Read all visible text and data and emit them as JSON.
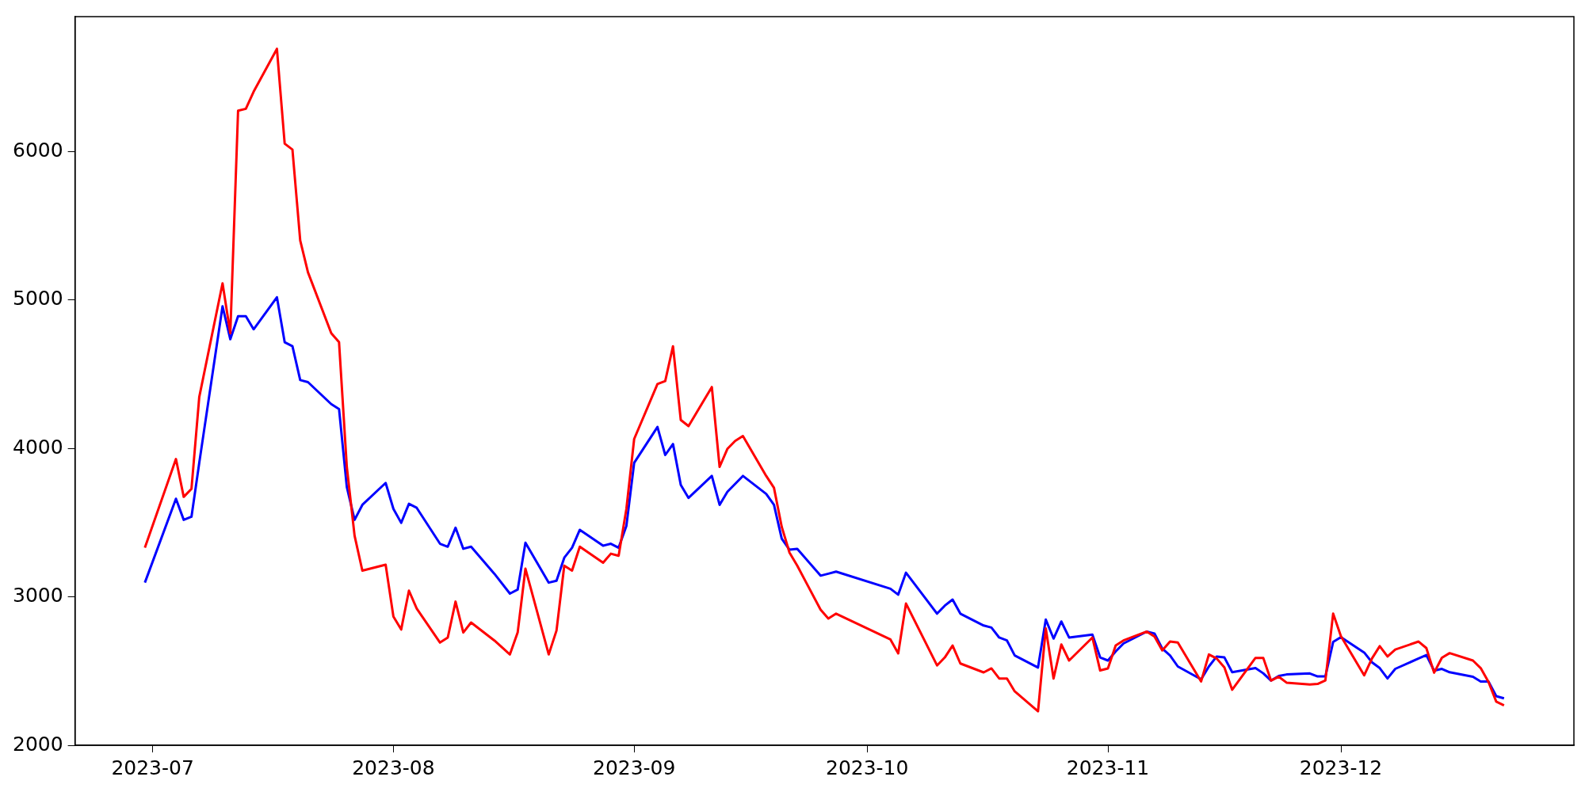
{
  "chart_data": {
    "type": "line",
    "x": [
      "2023-06-30",
      "2023-07-04",
      "2023-07-05",
      "2023-07-06",
      "2023-07-07",
      "2023-07-10",
      "2023-07-11",
      "2023-07-12",
      "2023-07-13",
      "2023-07-14",
      "2023-07-17",
      "2023-07-18",
      "2023-07-19",
      "2023-07-20",
      "2023-07-21",
      "2023-07-24",
      "2023-07-25",
      "2023-07-26",
      "2023-07-27",
      "2023-07-28",
      "2023-07-31",
      "2023-08-01",
      "2023-08-02",
      "2023-08-03",
      "2023-08-04",
      "2023-08-07",
      "2023-08-08",
      "2023-08-09",
      "2023-08-10",
      "2023-08-11",
      "2023-08-14",
      "2023-08-16",
      "2023-08-17",
      "2023-08-18",
      "2023-08-21",
      "2023-08-22",
      "2023-08-23",
      "2023-08-24",
      "2023-08-25",
      "2023-08-28",
      "2023-08-29",
      "2023-08-30",
      "2023-08-31",
      "2023-09-01",
      "2023-09-04",
      "2023-09-05",
      "2023-09-06",
      "2023-09-07",
      "2023-09-08",
      "2023-09-11",
      "2023-09-12",
      "2023-09-13",
      "2023-09-14",
      "2023-09-15",
      "2023-09-18",
      "2023-09-19",
      "2023-09-20",
      "2023-09-21",
      "2023-09-22",
      "2023-09-25",
      "2023-09-26",
      "2023-09-27",
      "2023-10-04",
      "2023-10-05",
      "2023-10-06",
      "2023-10-10",
      "2023-10-11",
      "2023-10-12",
      "2023-10-13",
      "2023-10-16",
      "2023-10-17",
      "2023-10-18",
      "2023-10-19",
      "2023-10-20",
      "2023-10-23",
      "2023-10-24",
      "2023-10-25",
      "2023-10-26",
      "2023-10-27",
      "2023-10-30",
      "2023-10-31",
      "2023-11-01",
      "2023-11-02",
      "2023-11-03",
      "2023-11-06",
      "2023-11-07",
      "2023-11-08",
      "2023-11-09",
      "2023-11-10",
      "2023-11-13",
      "2023-11-14",
      "2023-11-15",
      "2023-11-16",
      "2023-11-17",
      "2023-11-20",
      "2023-11-21",
      "2023-11-22",
      "2023-11-23",
      "2023-11-24",
      "2023-11-27",
      "2023-11-28",
      "2023-11-29",
      "2023-11-30",
      "2023-12-01",
      "2023-12-04",
      "2023-12-05",
      "2023-12-06",
      "2023-12-07",
      "2023-12-08",
      "2023-12-11",
      "2023-12-12",
      "2023-12-13",
      "2023-12-14",
      "2023-12-15",
      "2023-12-18",
      "2023-12-19",
      "2023-12-20",
      "2023-12-21",
      "2023-12-22"
    ],
    "series": [
      {
        "color": "#ff0000",
        "values": [
          3331,
          3929,
          3674,
          3728,
          4346,
          5113,
          4777,
          6276,
          6289,
          6404,
          6693,
          6054,
          6014,
          5402,
          5187,
          4777,
          4716,
          3876,
          3412,
          3177,
          3217,
          2867,
          2780,
          3042,
          2921,
          2692,
          2726,
          2968,
          2760,
          2827,
          2706,
          2612,
          2760,
          3190,
          2612,
          2773,
          3210,
          3177,
          3338,
          3230,
          3291,
          3277,
          3593,
          4064,
          4434,
          4454,
          4689,
          4192,
          4151,
          4414,
          3876,
          3997,
          4051,
          4084,
          3815,
          3735,
          3472,
          3298,
          3210,
          2914,
          2854,
          2887,
          2713,
          2619,
          2955,
          2538,
          2592,
          2672,
          2551,
          2491,
          2518,
          2450,
          2450,
          2363,
          2229,
          2787,
          2450,
          2679,
          2571,
          2726,
          2504,
          2518,
          2672,
          2706,
          2766,
          2733,
          2639,
          2699,
          2692,
          2430,
          2612,
          2585,
          2524,
          2374,
          2589,
          2589,
          2436,
          2462,
          2422,
          2410,
          2413,
          2437,
          2887,
          2735,
          2471,
          2585,
          2668,
          2598,
          2645,
          2699,
          2655,
          2489,
          2590,
          2621,
          2571,
          2520,
          2427,
          2294,
          2269
        ]
      },
      {
        "color": "#0000ff",
        "values": [
          3096,
          3661,
          3519,
          3540,
          3903,
          4958,
          4736,
          4891,
          4891,
          4803,
          5019,
          4716,
          4689,
          4461,
          4447,
          4299,
          4266,
          3741,
          3519,
          3620,
          3768,
          3593,
          3499,
          3627,
          3600,
          3358,
          3338,
          3466,
          3324,
          3338,
          3156,
          3022,
          3049,
          3365,
          3096,
          3109,
          3264,
          3331,
          3452,
          3345,
          3358,
          3331,
          3479,
          3903,
          4145,
          3956,
          4030,
          3755,
          3667,
          3815,
          3620,
          3708,
          3761,
          3815,
          3694,
          3620,
          3392,
          3318,
          3324,
          3143,
          3156,
          3170,
          3055,
          3015,
          3163,
          2887,
          2941,
          2982,
          2887,
          2807,
          2793,
          2726,
          2706,
          2605,
          2524,
          2847,
          2719,
          2834,
          2726,
          2746,
          2592,
          2571,
          2632,
          2686,
          2766,
          2753,
          2652,
          2605,
          2531,
          2444,
          2531,
          2598,
          2592,
          2492,
          2520,
          2485,
          2436,
          2467,
          2477,
          2484,
          2464,
          2464,
          2696,
          2729,
          2625,
          2559,
          2520,
          2450,
          2515,
          2585,
          2608,
          2503,
          2515,
          2492,
          2462,
          2430,
          2430,
          2331,
          2316
        ]
      }
    ],
    "xlim": [
      "2023-06-21",
      "2023-12-31"
    ],
    "xticks": [
      {
        "value": "2023-07-01",
        "label": "2023-07"
      },
      {
        "value": "2023-08-01",
        "label": "2023-08"
      },
      {
        "value": "2023-09-01",
        "label": "2023-09"
      },
      {
        "value": "2023-10-01",
        "label": "2023-10"
      },
      {
        "value": "2023-11-01",
        "label": "2023-11"
      },
      {
        "value": "2023-12-01",
        "label": "2023-12"
      }
    ],
    "ylim": [
      2000,
      6910
    ],
    "yticks": [
      2000,
      3000,
      4000,
      5000,
      6000
    ],
    "grid": false,
    "legend": false,
    "marker": "none",
    "line_style": "solid"
  }
}
